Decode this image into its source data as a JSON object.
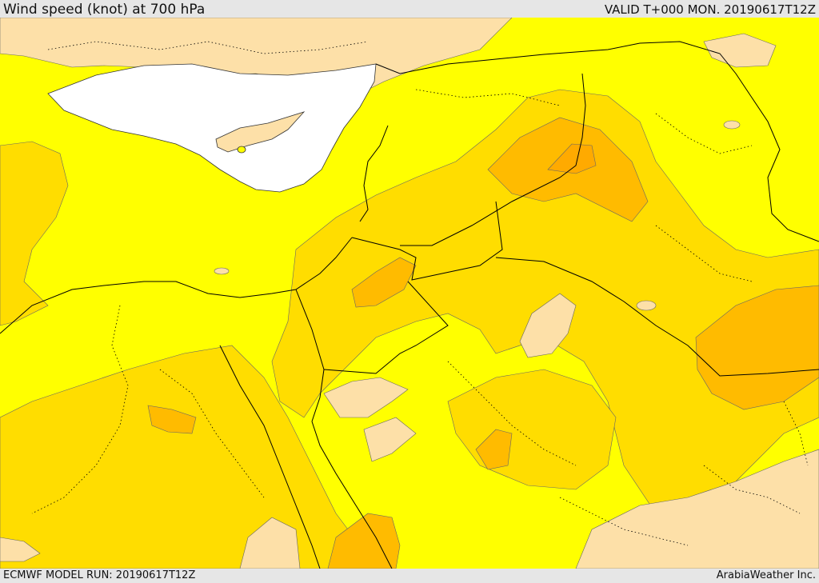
{
  "header": {
    "title": "Wind speed (knot) at 700 hPa",
    "valid": "VALID T+000 MON. 20190617T12Z"
  },
  "footer": {
    "model_run": "ECMWF MODEL RUN: 20190617T12Z",
    "credit": "ArabiaWeather Inc."
  },
  "palette": {
    "sea_no_data": "#ffffff",
    "light_band": "#fde0a8",
    "yellow_band": "#ffff00",
    "gold_band": "#ffdd00",
    "amber_band": "#ffbb00",
    "orange_band": "#ffaa00",
    "border_line": "#000000"
  }
}
